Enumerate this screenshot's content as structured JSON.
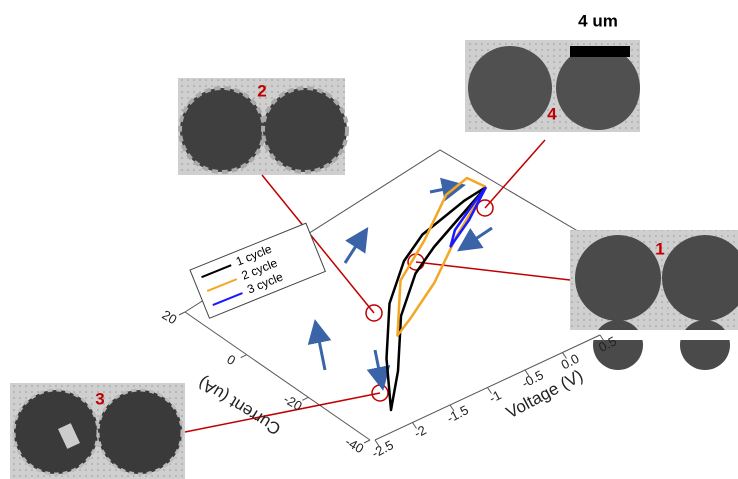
{
  "chart_data": {
    "type": "line",
    "xlabel": "Voltage (V)",
    "ylabel": "Current (uA)",
    "xlim": [
      -2.5,
      0.5
    ],
    "xticks": [
      -2.5,
      -2.0,
      -1.5,
      -1.0,
      -0.5,
      {
        "value": 0,
        "label": "0.0"
      },
      0.5
    ],
    "ylim": [
      -40,
      20
    ],
    "yticks": [
      -40,
      -20,
      0,
      20
    ],
    "series": [
      {
        "name": "1 cycle",
        "color": "#000000",
        "x": [
          -0.5,
          -0.9,
          -1.3,
          -1.6,
          -1.9,
          -2.1,
          -2.3,
          -2.2,
          -2.0,
          -1.7,
          -1.4,
          -1.1,
          -0.8,
          -0.5
        ],
        "values": [
          15,
          10,
          5,
          0,
          -10,
          -25,
          -35,
          -20,
          -5,
          5,
          10,
          12,
          14,
          15
        ]
      },
      {
        "name": "2 cycle",
        "color": "#f5a623",
        "x": [
          -0.5,
          -1.0,
          -1.4,
          -1.8,
          -2.0,
          -1.8,
          -1.4,
          -1.0,
          -0.7,
          -0.5
        ],
        "values": [
          15,
          5,
          -5,
          -12,
          -15,
          0,
          8,
          18,
          20,
          15
        ]
      },
      {
        "name": "3 cycle",
        "color": "#1a1aff",
        "x": [
          -0.5,
          -0.8,
          -1.1,
          -1.0,
          -0.7,
          -0.5
        ],
        "values": [
          15,
          8,
          3,
          7,
          12,
          15
        ]
      }
    ],
    "annotations": [
      "1",
      "2",
      "3",
      "4"
    ],
    "scale_bar": "4 um"
  }
}
